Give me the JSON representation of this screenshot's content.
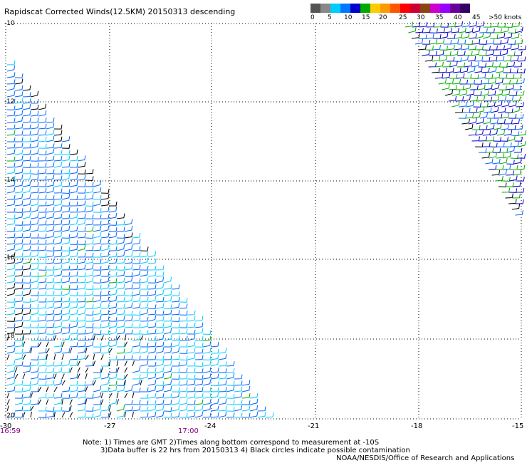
{
  "title": "Rapidscat Corrected Winds(12.5KM) 20150313 descending",
  "legend": {
    "colors": [
      "#555555",
      "#888888",
      "#00ccff",
      "#0077ff",
      "#0000cc",
      "#00aa00",
      "#ffcc00",
      "#ff9900",
      "#ff5500",
      "#ff0000",
      "#cc0033",
      "#8b4513",
      "#cc00cc",
      "#9900ff",
      "#660099",
      "#330066"
    ],
    "labels": [
      "0",
      "5",
      "10",
      "15",
      "20",
      "25",
      "30",
      "35",
      "40",
      "45",
      ">50 knots"
    ]
  },
  "map": {
    "lat_labels": [
      "-10",
      "-12",
      "-14",
      "-16",
      "-18",
      "-20"
    ],
    "lon_labels": [
      "-30",
      "-27",
      "-24",
      "-21",
      "-18",
      "-15"
    ],
    "time_labels": [
      "16:59",
      "17:00"
    ]
  },
  "notes": {
    "line1": "Note: 1) Times are GMT 2)Times along bottom correspond to measurement at -10S",
    "line2": "3)Data buffer is 22 hrs from 20150313 4) Black circles indicate possible contamination",
    "line3": "NOAA/NESDIS/Office of Research and Applications"
  }
}
